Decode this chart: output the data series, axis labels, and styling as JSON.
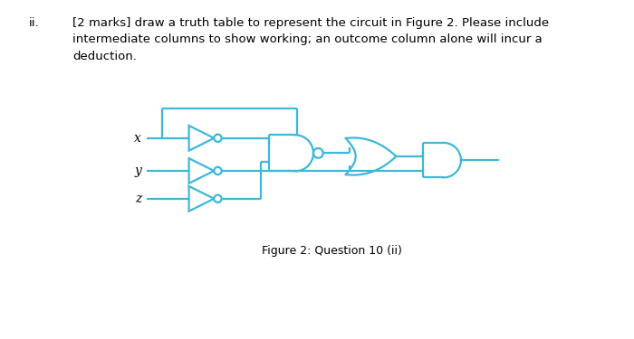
{
  "text_color": "#000000",
  "gate_color": "#3cb8d8",
  "bg_color": "#ffffff",
  "title_text": "ii.",
  "body_text": "[2 marks] draw a truth table to represent the circuit in Figure 2. Please include\nintermediate columns to show working; an outcome column alone will incur a\ndeduction.",
  "caption": "Figure 2: Question 10 (ii)",
  "figsize": [
    7.0,
    3.75
  ],
  "dpi": 100
}
